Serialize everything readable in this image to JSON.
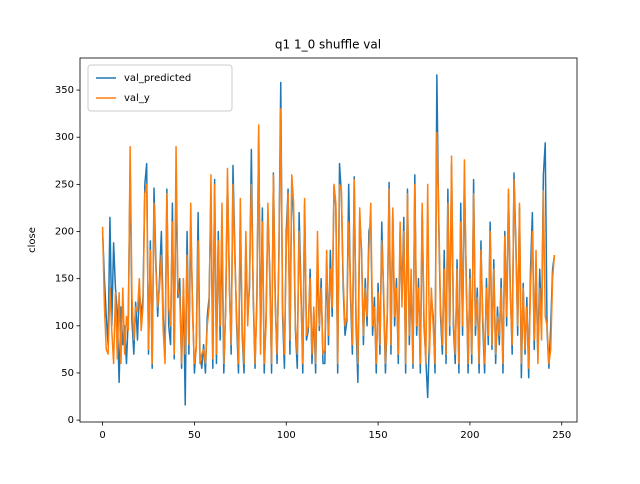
{
  "chart_data": {
    "type": "line",
    "title": "q1 1_0 shuffle val",
    "ylabel": "close",
    "x": [
      0,
      1,
      2,
      3,
      4,
      5,
      6,
      7,
      8,
      9,
      10,
      11,
      12,
      13,
      14,
      15,
      16,
      17,
      18,
      19,
      20,
      21,
      22,
      23,
      24,
      25,
      26,
      27,
      28,
      29,
      30,
      31,
      32,
      33,
      34,
      35,
      36,
      37,
      38,
      39,
      40,
      41,
      42,
      43,
      44,
      45,
      46,
      47,
      48,
      49,
      50,
      51,
      52,
      53,
      54,
      55,
      56,
      57,
      58,
      59,
      60,
      61,
      62,
      63,
      64,
      65,
      66,
      67,
      68,
      69,
      70,
      71,
      72,
      73,
      74,
      75,
      76,
      77,
      78,
      79,
      80,
      81,
      82,
      83,
      84,
      85,
      86,
      87,
      88,
      89,
      90,
      91,
      92,
      93,
      94,
      95,
      96,
      97,
      98,
      99,
      100,
      101,
      102,
      103,
      104,
      105,
      106,
      107,
      108,
      109,
      110,
      111,
      112,
      113,
      114,
      115,
      116,
      117,
      118,
      119,
      120,
      121,
      122,
      123,
      124,
      125,
      126,
      127,
      128,
      129,
      130,
      131,
      132,
      133,
      134,
      135,
      136,
      137,
      138,
      139,
      140,
      141,
      142,
      143,
      144,
      145,
      146,
      147,
      148,
      149,
      150,
      151,
      152,
      153,
      154,
      155,
      156,
      157,
      158,
      159,
      160,
      161,
      162,
      163,
      164,
      165,
      166,
      167,
      168,
      169,
      170,
      171,
      172,
      173,
      174,
      175,
      176,
      177,
      178,
      179,
      180,
      181,
      182,
      183,
      184,
      185,
      186,
      187,
      188,
      189,
      190,
      191,
      192,
      193,
      194,
      195,
      196,
      197,
      198,
      199,
      200,
      201,
      202,
      203,
      204,
      205,
      206,
      207,
      208,
      209,
      210,
      211,
      212,
      213,
      214,
      215,
      216,
      217,
      218,
      219,
      220,
      221,
      222,
      223,
      224,
      225,
      226,
      227,
      228,
      229,
      230,
      231,
      232,
      233,
      234,
      235,
      236,
      237,
      238,
      239,
      240,
      241,
      242,
      243,
      244,
      245,
      246
    ],
    "series": [
      {
        "name": "val_predicted",
        "color": "#1f77b4",
        "values": [
          200,
          150,
          110,
          80,
          215,
          100,
          188,
          140,
          115,
          40,
          120,
          80,
          100,
          60,
          110,
          270,
          105,
          70,
          125,
          85,
          140,
          110,
          130,
          250,
          272,
          70,
          190,
          55,
          246,
          170,
          110,
          150,
          200,
          110,
          70,
          245,
          100,
          80,
          230,
          65,
          260,
          130,
          150,
          55,
          140,
          16,
          200,
          70,
          210,
          120,
          50,
          80,
          220,
          70,
          55,
          80,
          50,
          110,
          130,
          240,
          55,
          255,
          60,
          200,
          85,
          200,
          50,
          120,
          258,
          150,
          70,
          270,
          180,
          100,
          50,
          215,
          90,
          50,
          185,
          110,
          140,
          287,
          130,
          55,
          130,
          305,
          80,
          225,
          50,
          110,
          220,
          160,
          50,
          262,
          130,
          60,
          180,
          358,
          110,
          55,
          200,
          245,
          70,
          258,
          215,
          95,
          55,
          220,
          140,
          50,
          230,
          85,
          95,
          160,
          60,
          115,
          50,
          175,
          95,
          150,
          60,
          60,
          170,
          80,
          180,
          110,
          248,
          225,
          50,
          272,
          240,
          140,
          90,
          105,
          250,
          130,
          70,
          258,
          100,
          40,
          215,
          180,
          80,
          150,
          100,
          200,
          210,
          90,
          130,
          50,
          145,
          70,
          210,
          130,
          50,
          110,
          252,
          70,
          220,
          100,
          150,
          60,
          200,
          130,
          215,
          50,
          245,
          80,
          150,
          55,
          260,
          90,
          150,
          50,
          222,
          100,
          65,
          24,
          90,
          130,
          110,
          50,
          366,
          210,
          110,
          70,
          180,
          60,
          245,
          90,
          270,
          100,
          60,
          170,
          50,
          230,
          90,
          260,
          150,
          50,
          160,
          60,
          255,
          90,
          140,
          50,
          190,
          100,
          50,
          150,
          80,
          210,
          75,
          170,
          60,
          120,
          80,
          150,
          50,
          200,
          100,
          240,
          140,
          70,
          262,
          190,
          90,
          225,
          45,
          145,
          70,
          130,
          45,
          160,
          220,
          75,
          160,
          65,
          160,
          100,
          260,
          294,
          95,
          55,
          100,
          160,
          175
        ]
      },
      {
        "name": "val_y",
        "color": "#ff7f0e",
        "values": [
          205,
          120,
          75,
          70,
          140,
          95,
          60,
          135,
          65,
          135,
          60,
          140,
          70,
          110,
          95,
          290,
          130,
          85,
          120,
          115,
          150,
          95,
          120,
          240,
          250,
          75,
          180,
          60,
          230,
          160,
          120,
          140,
          175,
          95,
          60,
          240,
          120,
          100,
          210,
          70,
          290,
          140,
          130,
          60,
          150,
          70,
          175,
          80,
          230,
          110,
          60,
          75,
          190,
          60,
          70,
          75,
          60,
          100,
          120,
          260,
          65,
          250,
          70,
          190,
          100,
          230,
          60,
          115,
          267,
          140,
          80,
          250,
          170,
          110,
          60,
          235,
          95,
          60,
          200,
          100,
          150,
          250,
          140,
          60,
          120,
          313,
          70,
          210,
          60,
          100,
          230,
          150,
          60,
          260,
          120,
          70,
          170,
          330,
          120,
          70,
          180,
          240,
          85,
          260,
          230,
          100,
          70,
          200,
          130,
          60,
          235,
          90,
          100,
          150,
          70,
          120,
          60,
          200,
          100,
          140,
          70,
          75,
          180,
          90,
          160,
          120,
          250,
          230,
          60,
          250,
          245,
          150,
          100,
          110,
          210,
          140,
          80,
          255,
          110,
          60,
          225,
          170,
          90,
          140,
          110,
          180,
          230,
          100,
          120,
          60,
          135,
          80,
          190,
          140,
          60,
          115,
          245,
          80,
          225,
          110,
          140,
          70,
          210,
          120,
          200,
          60,
          240,
          90,
          160,
          60,
          250,
          100,
          140,
          60,
          230,
          110,
          60,
          250,
          70,
          140,
          100,
          60,
          305,
          220,
          120,
          80,
          160,
          70,
          230,
          100,
          280,
          110,
          70,
          160,
          60,
          210,
          100,
          276,
          140,
          60,
          150,
          70,
          240,
          100,
          130,
          60,
          180,
          110,
          60,
          140,
          90,
          200,
          80,
          160,
          70,
          110,
          90,
          140,
          60,
          195,
          110,
          245,
          130,
          80,
          255,
          180,
          100,
          230,
          60,
          140,
          75,
          120,
          55,
          140,
          200,
          85,
          180,
          60,
          140,
          85,
          243,
          110,
          100,
          60,
          75,
          150,
          175
        ]
      }
    ],
    "xlim": [
      -12.3,
      258.3
    ],
    "ylim": [
      -2,
      384
    ],
    "xticks": [
      0,
      50,
      100,
      150,
      200,
      250
    ],
    "yticks": [
      0,
      50,
      100,
      150,
      200,
      250,
      300,
      350
    ],
    "legend": "upper left",
    "grid": false
  }
}
